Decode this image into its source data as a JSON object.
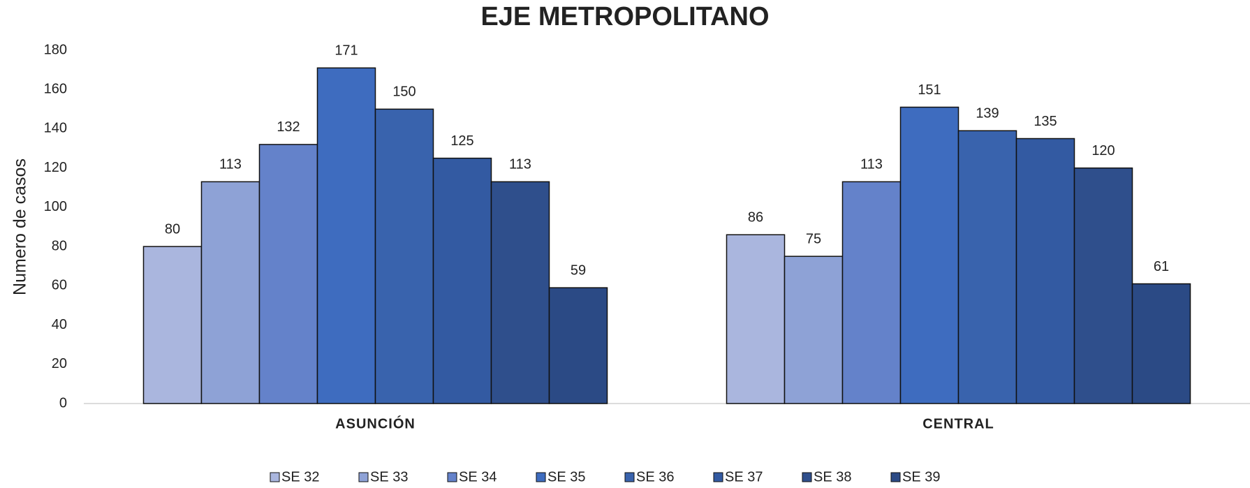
{
  "chart_data": {
    "type": "bar",
    "title": "EJE METROPOLITANO",
    "y_label": "Numero de casos",
    "categories": [
      "ASUNCIÓN",
      "CENTRAL"
    ],
    "series": [
      {
        "name": "SE 32",
        "color": "#aab6de",
        "values": [
          80,
          86
        ]
      },
      {
        "name": "SE 33",
        "color": "#8ea2d6",
        "values": [
          113,
          75
        ]
      },
      {
        "name": "SE 34",
        "color": "#6482ca",
        "values": [
          132,
          113
        ]
      },
      {
        "name": "SE 35",
        "color": "#3e6cbf",
        "values": [
          171,
          151
        ]
      },
      {
        "name": "SE 36",
        "color": "#3963ad",
        "values": [
          150,
          139
        ]
      },
      {
        "name": "SE 37",
        "color": "#335aa2",
        "values": [
          125,
          135
        ]
      },
      {
        "name": "SE 38",
        "color": "#2f4f8c",
        "values": [
          113,
          120
        ]
      },
      {
        "name": "SE 39",
        "color": "#2b4a85",
        "values": [
          59,
          61
        ]
      }
    ],
    "ylim": [
      0,
      180
    ],
    "yticks": [
      0,
      20,
      40,
      60,
      80,
      100,
      120,
      140,
      160,
      180
    ],
    "grid": false,
    "legend": "bottom"
  }
}
